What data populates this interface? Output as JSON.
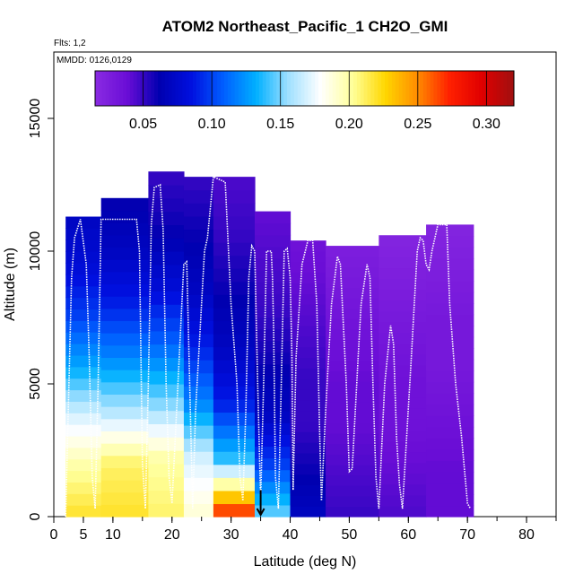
{
  "chart_data": {
    "type": "heatmap",
    "title": "ATOM2 Northeast_Pacific_1 CH2O_GMI",
    "flights_note": "Flts: 1,2",
    "dates_note": "MMDD: 0126,0129",
    "xlabel": "Latitude (deg N)",
    "ylabel": "Altitude (m)",
    "xlim": [
      0,
      85
    ],
    "ylim": [
      0,
      17500
    ],
    "x_ticks": [
      0,
      5,
      10,
      20,
      30,
      40,
      50,
      60,
      70,
      80
    ],
    "y_ticks": [
      0,
      5000,
      10000,
      15000
    ],
    "colorbar": {
      "range": [
        0.015,
        0.32
      ],
      "ticks": [
        0.05,
        0.1,
        0.15,
        0.2,
        0.25,
        0.3
      ],
      "tick_labels": [
        "0.05",
        "0.10",
        "0.15",
        "0.20",
        "0.25",
        "0.30"
      ],
      "colors": [
        "#8a2be2",
        "#6a0dd6",
        "#0000b0",
        "#0010e0",
        "#0060ff",
        "#00b0ff",
        "#a0e0ff",
        "#ffffff",
        "#ffff99",
        "#ffd700",
        "#ff8c00",
        "#ff2000",
        "#e00000",
        "#a01010"
      ]
    },
    "bands": [
      {
        "lat": [
          2,
          8
        ],
        "alt_top": 11300,
        "profile": [
          0.07,
          0.08,
          0.1,
          0.13,
          0.17,
          0.2,
          0.22
        ]
      },
      {
        "lat": [
          8,
          16
        ],
        "alt_top": 12000,
        "profile": [
          0.06,
          0.07,
          0.09,
          0.12,
          0.16,
          0.21,
          0.22
        ]
      },
      {
        "lat": [
          16,
          22
        ],
        "alt_top": 13000,
        "profile": [
          0.05,
          0.06,
          0.08,
          0.11,
          0.15,
          0.2,
          0.21
        ]
      },
      {
        "lat": [
          22,
          27
        ],
        "alt_top": 12800,
        "profile": [
          0.05,
          0.06,
          0.07,
          0.09,
          0.12,
          0.17,
          0.19
        ]
      },
      {
        "lat": [
          27,
          34
        ],
        "alt_top": 12800,
        "profile": [
          0.045,
          0.05,
          0.06,
          0.07,
          0.09,
          0.14,
          0.28
        ]
      },
      {
        "lat": [
          34,
          40
        ],
        "alt_top": 11500,
        "profile": [
          0.04,
          0.045,
          0.05,
          0.06,
          0.07,
          0.1,
          0.15
        ]
      },
      {
        "lat": [
          40,
          46
        ],
        "alt_top": 10400,
        "profile": [
          0.035,
          0.04,
          0.045,
          0.05,
          0.05,
          0.06,
          0.07
        ]
      },
      {
        "lat": [
          46,
          55
        ],
        "alt_top": 10200,
        "profile": [
          0.025,
          0.03,
          0.035,
          0.04,
          0.04,
          0.045,
          0.05
        ]
      },
      {
        "lat": [
          55,
          63
        ],
        "alt_top": 10600,
        "profile": [
          0.02,
          0.025,
          0.03,
          0.035,
          0.035,
          0.04,
          0.045
        ]
      },
      {
        "lat": [
          63,
          71
        ],
        "alt_top": 11000,
        "profile": [
          0.02,
          0.025,
          0.03,
          0.03,
          0.035,
          0.04,
          0.04
        ]
      }
    ],
    "flight_track": [
      [
        2,
        0
      ],
      [
        3,
        9000
      ],
      [
        3.5,
        10500
      ],
      [
        4.5,
        11200
      ],
      [
        5.5,
        9500
      ],
      [
        6,
        6000
      ],
      [
        6.5,
        1500
      ],
      [
        7,
        300
      ],
      [
        7.5,
        5000
      ],
      [
        8,
        11200
      ],
      [
        14,
        11200
      ],
      [
        14.5,
        10000
      ],
      [
        15,
        2000
      ],
      [
        15.5,
        300
      ],
      [
        16,
        5000
      ],
      [
        16.5,
        11000
      ],
      [
        17,
        12400
      ],
      [
        18,
        12500
      ],
      [
        18.5,
        10800
      ],
      [
        19,
        5000
      ],
      [
        19.5,
        1500
      ],
      [
        20,
        500
      ],
      [
        21,
        5000
      ],
      [
        22,
        9500
      ],
      [
        22.5,
        9600
      ],
      [
        23,
        5000
      ],
      [
        23.5,
        300
      ],
      [
        24,
        4000
      ],
      [
        25.5,
        10000
      ],
      [
        26,
        10500
      ],
      [
        27,
        12800
      ],
      [
        29,
        12600
      ],
      [
        30,
        8000
      ],
      [
        31,
        5000
      ],
      [
        31.5,
        1500
      ],
      [
        32,
        600
      ],
      [
        32.5,
        4000
      ],
      [
        33,
        9000
      ],
      [
        33.5,
        10200
      ],
      [
        34,
        10000
      ],
      [
        34.5,
        5000
      ],
      [
        35,
        600
      ],
      [
        35.5,
        5000
      ],
      [
        36,
        10000
      ],
      [
        36.8,
        10000
      ],
      [
        37,
        9000
      ],
      [
        37.2,
        7000
      ],
      [
        37.5,
        1500
      ],
      [
        38,
        300
      ],
      [
        38.5,
        5000
      ],
      [
        39,
        10000
      ],
      [
        39.5,
        10100
      ],
      [
        40,
        9000
      ],
      [
        40.3,
        6000
      ],
      [
        40.5,
        1000
      ],
      [
        41,
        6000
      ],
      [
        42,
        9500
      ],
      [
        43,
        10400
      ],
      [
        43.8,
        10400
      ],
      [
        44.5,
        8000
      ],
      [
        45,
        3000
      ],
      [
        45.3,
        600
      ],
      [
        46,
        4000
      ],
      [
        47,
        8000
      ],
      [
        48,
        9800
      ],
      [
        48.5,
        9500
      ],
      [
        49.5,
        5000
      ],
      [
        50,
        1700
      ],
      [
        50.5,
        1800
      ],
      [
        51.5,
        6000
      ],
      [
        52,
        8000
      ],
      [
        53,
        9500
      ],
      [
        53.5,
        9000
      ],
      [
        54,
        5000
      ],
      [
        54.5,
        1500
      ],
      [
        55,
        300
      ],
      [
        56,
        5000
      ],
      [
        57,
        7200
      ],
      [
        57.5,
        6500
      ],
      [
        58,
        3000
      ],
      [
        58.5,
        1200
      ],
      [
        59,
        300
      ],
      [
        60.5,
        6000
      ],
      [
        61.5,
        10000
      ],
      [
        62,
        10500
      ],
      [
        62.5,
        10400
      ],
      [
        63,
        9500
      ],
      [
        63.5,
        9300
      ],
      [
        64,
        10000
      ],
      [
        65,
        11000
      ],
      [
        66.5,
        11000
      ],
      [
        67,
        8000
      ],
      [
        68,
        5000
      ],
      [
        69,
        3000
      ],
      [
        70,
        500
      ],
      [
        70.5,
        300
      ]
    ],
    "arrow_at_lat": 35
  }
}
